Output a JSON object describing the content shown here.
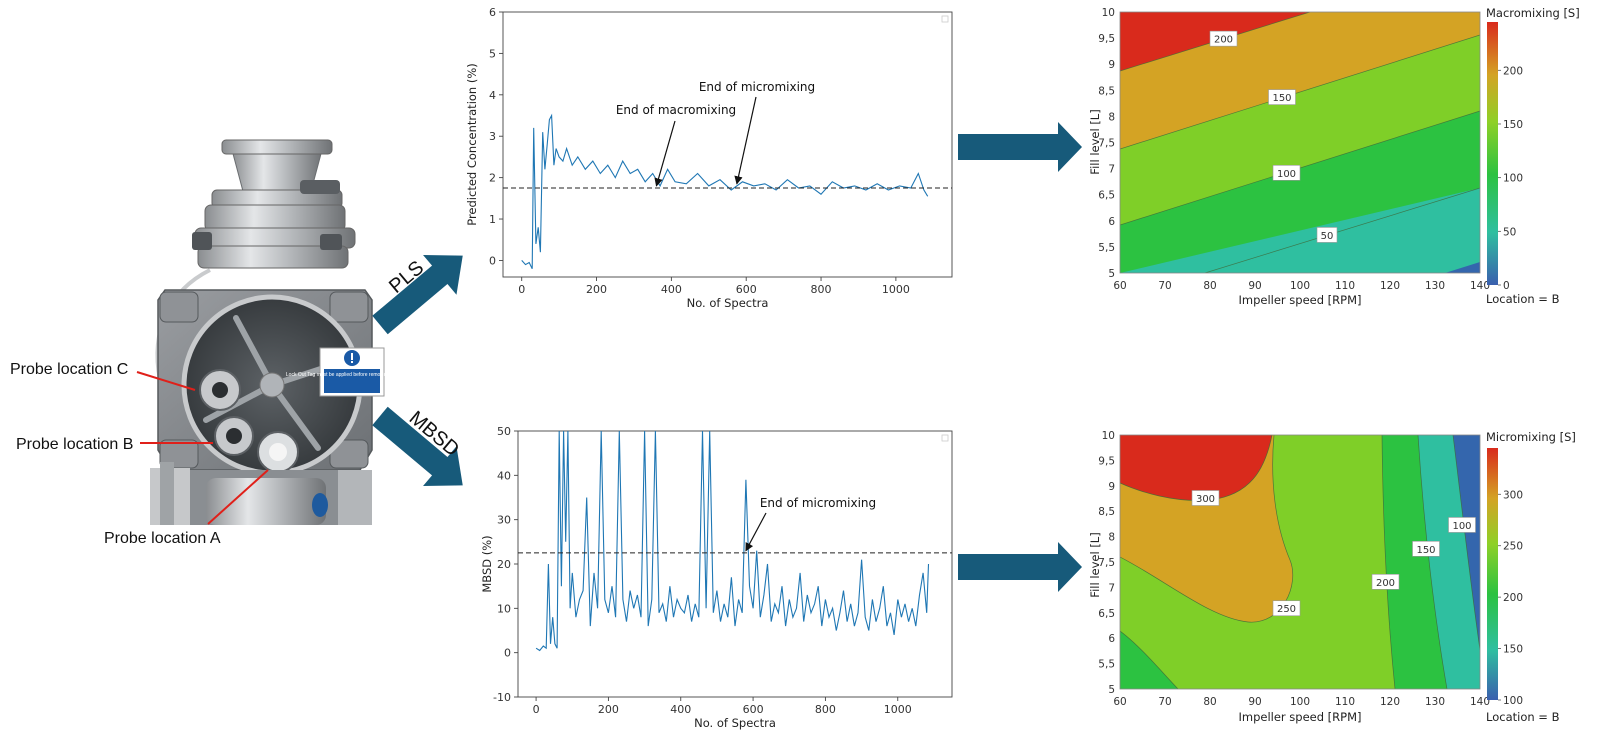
{
  "photo": {
    "sign_text": "Lock Out Tag must be applied before removing fixed guards",
    "probe_labels": [
      "Probe location C",
      "Probe location B",
      "Probe location A"
    ]
  },
  "flow_arrows": {
    "upper": "PLS",
    "lower": "MBSD"
  },
  "colors": {
    "series": "#1f77b4",
    "flow_arrow": "#175a7a",
    "pointer": "#e0201a",
    "contour_levels": [
      "#3466ad",
      "#2fbfa0",
      "#2cc241",
      "#7fcf28",
      "#d4a324",
      "#d92a1c"
    ]
  },
  "chart_data": [
    {
      "type": "line",
      "xlabel": "No. of Spectra",
      "ylabel": "Predicted Concentration (%)",
      "xlim": [
        -50,
        1150
      ],
      "ylim": [
        -0.4,
        6
      ],
      "xticks": [
        0,
        200,
        400,
        600,
        800,
        1000
      ],
      "yticks": [
        0,
        1,
        2,
        3,
        4,
        5,
        6
      ],
      "reference_line": 1.75,
      "series": [
        {
          "x": [
            0,
            10,
            20,
            28,
            32,
            38,
            44,
            50,
            56,
            62,
            68,
            74,
            80,
            86,
            92,
            100,
            110,
            120,
            135,
            150,
            170,
            190,
            210,
            230,
            250,
            270,
            290,
            310,
            330,
            350,
            370,
            390,
            410,
            440,
            470,
            500,
            530,
            560,
            590,
            620,
            650,
            680,
            710,
            740,
            770,
            800,
            830,
            860,
            890,
            920,
            950,
            980,
            1010,
            1040,
            1060,
            1075,
            1085
          ],
          "values": [
            0,
            -0.1,
            -0.05,
            -0.2,
            3.2,
            0.4,
            0.8,
            0.2,
            3.1,
            2.2,
            2.8,
            3.4,
            3.5,
            2.3,
            2.7,
            2.5,
            2.4,
            2.7,
            2.3,
            2.5,
            2.2,
            2.4,
            2.1,
            2.3,
            2.0,
            2.4,
            2.1,
            2.2,
            1.9,
            2.1,
            1.8,
            2.2,
            1.9,
            1.85,
            2.1,
            1.8,
            1.95,
            1.7,
            1.9,
            1.8,
            1.85,
            1.7,
            1.95,
            1.75,
            1.8,
            1.6,
            1.9,
            1.75,
            1.8,
            1.7,
            1.85,
            1.7,
            1.8,
            1.75,
            2.1,
            1.7,
            1.55
          ]
        }
      ],
      "annotations": [
        {
          "text": "End of macromixing",
          "x": 360,
          "y": 1.8
        },
        {
          "text": "End of micromixing",
          "x": 575,
          "y": 1.85
        }
      ]
    },
    {
      "type": "line",
      "xlabel": "No. of Spectra",
      "ylabel": "MBSD (%)",
      "xlim": [
        -50,
        1150
      ],
      "ylim": [
        -10,
        50
      ],
      "xticks": [
        0,
        200,
        400,
        600,
        800,
        1000
      ],
      "yticks": [
        -10,
        0,
        10,
        20,
        30,
        40,
        50
      ],
      "reference_line": 22.5,
      "series": [
        {
          "x": [
            0,
            10,
            20,
            28,
            34,
            40,
            46,
            52,
            58,
            64,
            70,
            76,
            82,
            88,
            94,
            100,
            110,
            120,
            130,
            140,
            150,
            160,
            170,
            180,
            190,
            200,
            210,
            220,
            230,
            240,
            250,
            260,
            270,
            280,
            290,
            300,
            310,
            320,
            330,
            340,
            350,
            360,
            370,
            380,
            390,
            400,
            410,
            420,
            430,
            440,
            450,
            460,
            470,
            480,
            490,
            500,
            510,
            520,
            530,
            540,
            550,
            560,
            570,
            580,
            590,
            600,
            610,
            620,
            630,
            640,
            650,
            660,
            670,
            680,
            690,
            700,
            710,
            720,
            730,
            740,
            750,
            760,
            770,
            780,
            790,
            800,
            810,
            820,
            830,
            840,
            850,
            860,
            870,
            880,
            890,
            900,
            910,
            920,
            930,
            940,
            950,
            960,
            970,
            980,
            990,
            1000,
            1010,
            1020,
            1030,
            1040,
            1050,
            1060,
            1070,
            1080,
            1085
          ],
          "values": [
            1,
            0.5,
            1.5,
            1,
            20,
            2,
            8,
            2,
            1,
            50,
            15,
            50,
            25,
            50,
            10,
            18,
            8,
            12,
            14,
            35,
            6,
            18,
            10,
            50,
            12,
            9,
            15,
            8,
            50,
            12,
            7,
            14,
            10,
            13,
            8,
            50,
            6,
            12,
            50,
            9,
            11,
            7,
            15,
            8,
            12,
            10,
            9,
            13,
            7,
            11,
            8,
            50,
            10,
            50,
            9,
            14,
            7,
            11,
            8,
            17,
            6,
            12,
            9,
            39,
            15,
            10,
            23,
            8,
            13,
            20,
            7,
            11,
            9,
            15,
            6,
            12,
            8,
            10,
            18,
            7,
            13,
            9,
            11,
            15,
            6,
            12,
            8,
            10,
            5,
            9,
            14,
            7,
            11,
            6,
            9,
            21,
            8,
            5,
            12,
            7,
            10,
            15,
            6,
            9,
            4,
            12,
            8,
            11,
            7,
            10,
            6,
            13,
            18,
            9,
            20
          ]
        }
      ],
      "annotations": [
        {
          "text": "End of micromixing",
          "x": 580,
          "y": 23
        }
      ]
    },
    {
      "type": "contour",
      "title": "Macromixing [S]",
      "xlabel": "Impeller speed [RPM]",
      "ylabel": "Fill level [L]",
      "xlim": [
        60,
        140
      ],
      "ylim": [
        5,
        10
      ],
      "xticks": [
        "60",
        "70",
        "80",
        "90",
        "100",
        "110",
        "120",
        "130",
        "140"
      ],
      "yticks": [
        "5",
        "5,5",
        "6",
        "6,5",
        "7",
        "7,5",
        "8",
        "8,5",
        "9",
        "9,5",
        "10"
      ],
      "colorbar": {
        "ticks": [
          "0",
          "50",
          "100",
          "150",
          "200"
        ],
        "range": [
          0,
          245
        ]
      },
      "contour_labels": [
        {
          "text": "200",
          "x": 83,
          "y": 9.48
        },
        {
          "text": "150",
          "x": 96,
          "y": 8.36
        },
        {
          "text": "100",
          "x": 97,
          "y": 6.91
        },
        {
          "text": "50",
          "x": 106,
          "y": 5.72
        }
      ],
      "footer": "Location = B"
    },
    {
      "type": "contour",
      "title": "Micromixing [S]",
      "xlabel": "Impeller speed [RPM]",
      "ylabel": "Fill level [L]",
      "xlim": [
        60,
        140
      ],
      "ylim": [
        5,
        10
      ],
      "xticks": [
        "60",
        "70",
        "80",
        "90",
        "100",
        "110",
        "120",
        "130",
        "140"
      ],
      "yticks": [
        "5",
        "5,5",
        "6",
        "6,5",
        "7",
        "7,5",
        "8",
        "8,5",
        "9",
        "9,5",
        "10"
      ],
      "colorbar": {
        "ticks": [
          "100",
          "150",
          "200",
          "250",
          "300"
        ],
        "range": [
          100,
          345
        ]
      },
      "contour_labels": [
        {
          "text": "300",
          "x": 79,
          "y": 8.75
        },
        {
          "text": "250",
          "x": 97,
          "y": 6.58
        },
        {
          "text": "200",
          "x": 119,
          "y": 7.1
        },
        {
          "text": "150",
          "x": 128,
          "y": 7.75
        },
        {
          "text": "100",
          "x": 136,
          "y": 8.22
        }
      ],
      "footer": "Location = B"
    }
  ]
}
